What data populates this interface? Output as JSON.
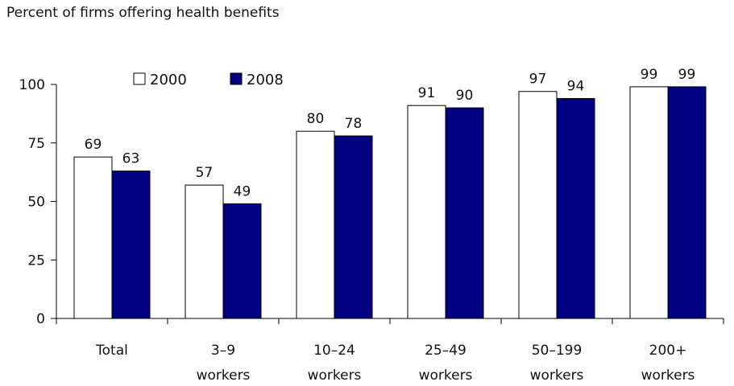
{
  "chart_data": {
    "type": "bar",
    "title": "Percent of firms offering health benefits",
    "categories": [
      [
        "Total"
      ],
      [
        "3–9",
        "workers"
      ],
      [
        "10–24",
        "workers"
      ],
      [
        "25–49",
        "workers"
      ],
      [
        "50–199",
        "workers"
      ],
      [
        "200+",
        "workers"
      ]
    ],
    "series": [
      {
        "name": "2000",
        "values": [
          69,
          57,
          80,
          91,
          97,
          99
        ],
        "color": "#ffffff"
      },
      {
        "name": "2008",
        "values": [
          63,
          49,
          78,
          90,
          94,
          99
        ],
        "color": "#000080"
      }
    ],
    "ylim": [
      0,
      100
    ],
    "yticks": [
      0,
      25,
      50,
      75,
      100
    ],
    "grid": false,
    "legend_position": "top-left"
  }
}
